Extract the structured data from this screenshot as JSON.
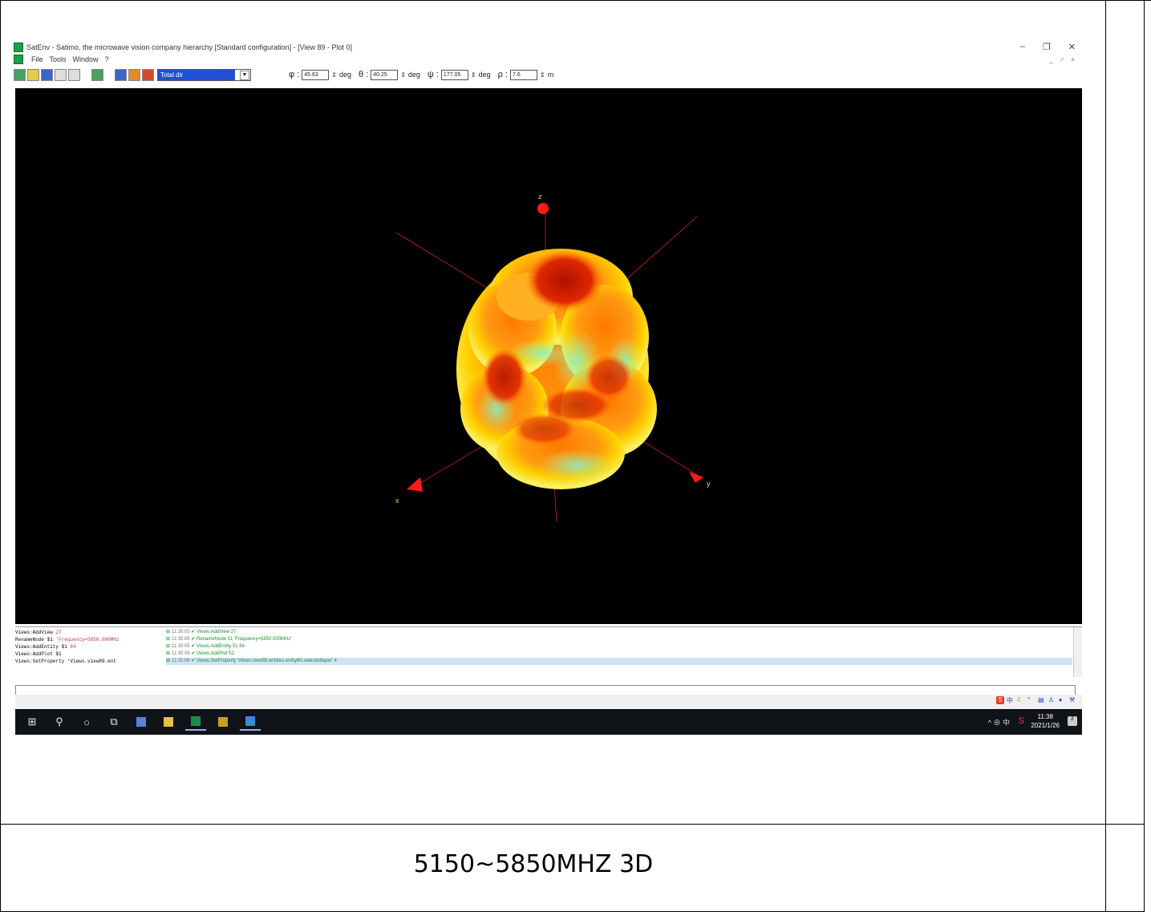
{
  "window": {
    "title": "SatEnv - Satimo, the microwave vision company hierarchy [Standard configuration] - [View 89 - Plot 0]",
    "controls": [
      "–",
      "❐",
      "✕"
    ],
    "mdi_controls": "_ ♂ ×"
  },
  "menu": {
    "items": [
      "File",
      "Tools",
      "Window",
      "?"
    ]
  },
  "toolbar": {
    "dropdown_value": "Total dir",
    "phi_label": "φ :",
    "phi_value": "45.63",
    "phi_unit": "deg",
    "theta_label": "θ :",
    "theta_value": "40.25",
    "theta_unit": "deg",
    "psi_label": "ψ :",
    "psi_value": "177.05",
    "psi_unit": "deg",
    "rho_label": "ρ :",
    "rho_value": "7.6",
    "rho_unit": "m"
  },
  "console": {
    "commands": [
      {
        "cmd": "Views:AddView",
        "arg": " 27"
      },
      {
        "cmd": "RenameNode $1 ",
        "arg": "'Frequency=5850.000MHz"
      },
      {
        "cmd": "Views:AddEntity $1 ",
        "arg": "84"
      },
      {
        "cmd": "Views:AddPlot $1",
        "arg": ""
      },
      {
        "cmd": "Views:SetProperty 'Views.view89.ent",
        "arg": ""
      }
    ],
    "log": [
      {
        "time": "11:35:05",
        "text": "Views:AddView 27"
      },
      {
        "time": "11:35:05",
        "text": "RenameNode 51 'Frequency=5850.000MHz'"
      },
      {
        "time": "11:35:05",
        "text": "Views:AddEntity 51 84"
      },
      {
        "time": "11:35:06",
        "text": "Views:AddPlot 52"
      },
      {
        "time": "11:35:06",
        "text": "Views:SetProperty 'Views.view89.entities.entity80.selectedlayer' 4"
      }
    ]
  },
  "taskbar": {
    "clock_time": "11:38",
    "clock_date": "2021/1/26",
    "tray": "^ ⊕ 中"
  },
  "caption": "5150~5850MHZ 3D",
  "colors": {
    "pattern_hot": "#d81c00",
    "pattern_mid": "#ff8a00",
    "pattern_warm": "#ffd400",
    "pattern_cool": "#7ee8c8",
    "axis": "#c82020",
    "viewport_bg": "#000000"
  }
}
